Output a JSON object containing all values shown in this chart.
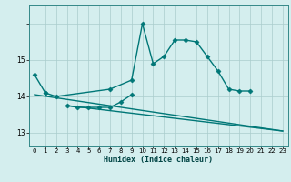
{
  "title": "",
  "xlabel": "Humidex (Indice chaleur)",
  "background_color": "#d4eeee",
  "grid_color": "#aacccc",
  "line_color": "#007777",
  "x_values": [
    0,
    1,
    2,
    3,
    4,
    5,
    6,
    7,
    8,
    9,
    10,
    11,
    12,
    13,
    14,
    15,
    16,
    17,
    18,
    19,
    20,
    21,
    22,
    23
  ],
  "series1_x": [
    0,
    1
  ],
  "series1_y": [
    14.6,
    14.1
  ],
  "series2_x": [
    1,
    2,
    7,
    9,
    10,
    11,
    12,
    13,
    14,
    15,
    16,
    17,
    18,
    19,
    20
  ],
  "series2_y": [
    14.1,
    14.0,
    14.2,
    14.45,
    16.0,
    14.9,
    15.1,
    15.55,
    15.55,
    15.5,
    15.1,
    14.7,
    14.2,
    14.15,
    14.15
  ],
  "series3_x": [
    3,
    4,
    5,
    6,
    7,
    8,
    9
  ],
  "series3_y": [
    13.75,
    13.7,
    13.7,
    13.7,
    13.7,
    13.85,
    14.05
  ],
  "series4_x": [
    0,
    23
  ],
  "series4_y": [
    14.05,
    13.05
  ],
  "series5_x": [
    3,
    23
  ],
  "series5_y": [
    13.75,
    13.05
  ],
  "ylim": [
    12.65,
    16.5
  ],
  "yticks": [
    13,
    14,
    15,
    16
  ],
  "yticklabels": [
    "13",
    "14",
    "15",
    ""
  ],
  "xticks": [
    0,
    1,
    2,
    3,
    4,
    5,
    6,
    7,
    8,
    9,
    10,
    11,
    12,
    13,
    14,
    15,
    16,
    17,
    18,
    19,
    20,
    21,
    22,
    23
  ],
  "marker": "D",
  "markersize": 2.5,
  "linewidth": 1.0
}
